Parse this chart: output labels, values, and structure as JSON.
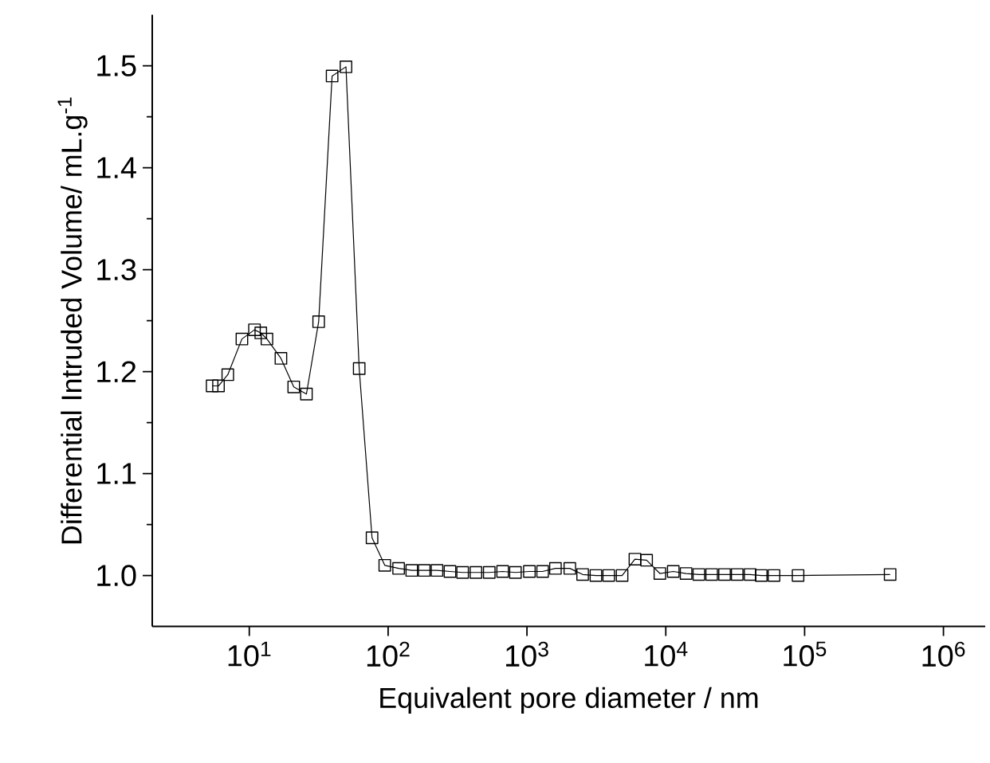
{
  "chart_data": {
    "type": "line",
    "xlabel": "Equivalent pore diameter / nm",
    "ylabel": "Differential Intruded Volume/ mL.g$^{-1}$",
    "log": "x",
    "marker": "square",
    "line_style": "solid",
    "xlim": [
      2,
      2000000
    ],
    "ylim": [
      0.95,
      1.55
    ],
    "xticks": [
      {
        "value": 10,
        "label": "10$^{1}$"
      },
      {
        "value": 100,
        "label": "10$^{2}$"
      },
      {
        "value": 1000,
        "label": "10$^{3}$"
      },
      {
        "value": 10000,
        "label": "10$^{4}$"
      },
      {
        "value": 100000,
        "label": "10$^{5}$"
      },
      {
        "value": 1000000,
        "label": "10$^{6}$"
      }
    ],
    "yticks": [
      {
        "value": 1.0,
        "label": "1.0"
      },
      {
        "value": 1.1,
        "label": "1.1"
      },
      {
        "value": 1.2,
        "label": "1.2"
      },
      {
        "value": 1.3,
        "label": "1.3"
      },
      {
        "value": 1.4,
        "label": "1.4"
      },
      {
        "value": 1.5,
        "label": "1.5"
      }
    ],
    "series": [
      {
        "color": "#000000",
        "x": [
          5.4,
          6.0,
          7.0,
          8.85,
          10.9,
          12.1,
          13.4,
          16.9,
          20.9,
          25.8,
          31.6,
          39.5,
          49.7,
          61.9,
          76.6,
          94.6,
          119,
          148,
          182,
          225,
          279,
          344,
          429,
          535,
          668,
          826,
          1041,
          1297,
          1604,
          2036,
          2518,
          3138,
          3880,
          4845,
          5993,
          7278,
          9066,
          11320,
          14000,
          17300,
          21400,
          26500,
          32700,
          40500,
          48700,
          60200,
          89700,
          413000
        ],
        "values": [
          1.186,
          1.186,
          1.197,
          1.232,
          1.241,
          1.238,
          1.232,
          1.213,
          1.185,
          1.178,
          1.249,
          1.49,
          1.499,
          1.203,
          1.037,
          1.01,
          1.007,
          1.005,
          1.005,
          1.005,
          1.004,
          1.003,
          1.003,
          1.003,
          1.004,
          1.003,
          1.004,
          1.004,
          1.007,
          1.007,
          1.001,
          1.0,
          1.0,
          1.0,
          1.016,
          1.015,
          1.002,
          1.004,
          1.002,
          1.001,
          1.001,
          1.001,
          1.001,
          1.001,
          1.0,
          1.0,
          1.0,
          1.001
        ]
      }
    ]
  }
}
